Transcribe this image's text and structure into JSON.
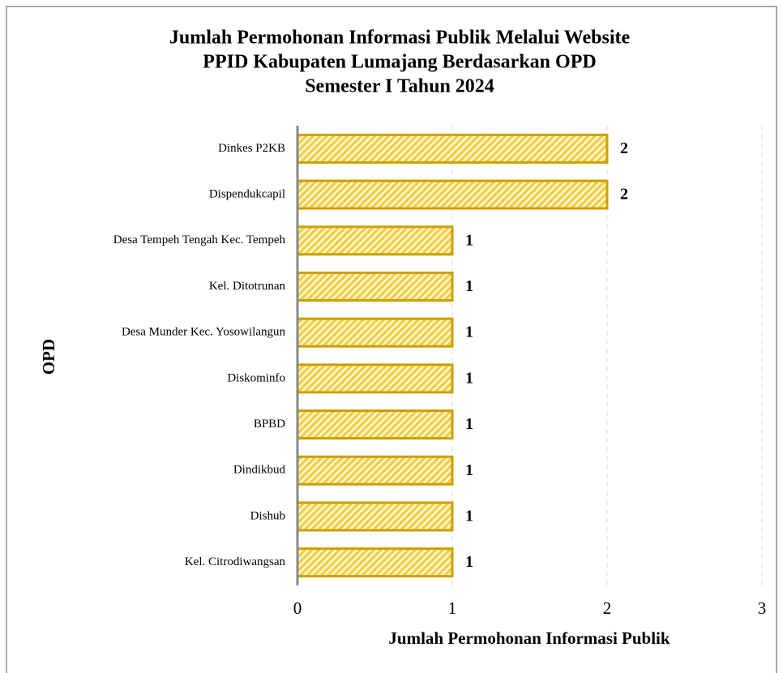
{
  "chart_data": {
    "type": "bar",
    "orientation": "horizontal",
    "title": [
      "Jumlah Permohonan Informasi Publik Melalui Website",
      "PPID Kabupaten Lumajang Berdasarkan OPD",
      "Semester I Tahun 2024"
    ],
    "xlabel": "Jumlah Permohonan Informasi Publik",
    "ylabel": "OPD",
    "categories": [
      "Dinkes P2KB",
      "Dispendukcapil",
      "Desa Tempeh Tengah Kec. Tempeh",
      "Kel. Ditotrunan",
      "Desa Munder Kec. Yosowilangun",
      "Diskominfo",
      "BPBD",
      "Dindikbud",
      "Dishub",
      "Kel. Citrodiwangsan"
    ],
    "values": [
      2,
      2,
      1,
      1,
      1,
      1,
      1,
      1,
      1,
      1
    ],
    "color": "#c9a100",
    "xlim": [
      0,
      3
    ],
    "xticks": [
      0,
      1,
      2,
      3
    ],
    "grid": true
  }
}
